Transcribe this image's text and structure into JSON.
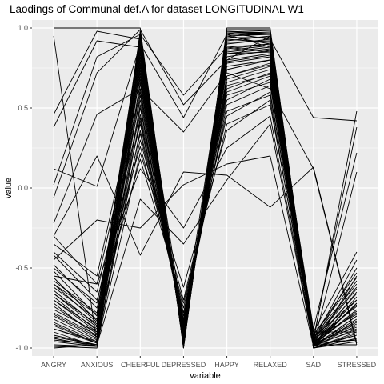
{
  "chart_data": {
    "type": "line",
    "subtype": "parallel-coordinates",
    "title": "Laodings of Communal def.A for dataset LONGITUDINAL W1",
    "xlabel": "variable",
    "ylabel": "value",
    "categories": [
      "ANGRY",
      "ANXIOUS",
      "CHEERFUL",
      "DEPRESSED",
      "HAPPY",
      "RELAXED",
      "SAD",
      "STRESSED"
    ],
    "x_tick_labels": [
      "ANGRY",
      "ANXIOUS",
      "CHEERFUL",
      "DEPRESSED",
      "HAPPY",
      "RELAXED",
      "SAD",
      "STRESSED"
    ],
    "ylim": [
      -1.05,
      1.05
    ],
    "y_ticks": [
      -1.0,
      -0.5,
      0.0,
      0.5,
      1.0
    ],
    "y_tick_labels": [
      "-1.0",
      "-0.5",
      "0.0",
      "0.5",
      "1.0"
    ],
    "grid": true,
    "background": "#ebebeb",
    "grid_color": "#ffffff",
    "line_color": "#000000",
    "series": [
      {
        "values": [
          1.0,
          1.0,
          1.0,
          -1.0,
          1.0,
          1.0,
          -1.0,
          -0.55
        ]
      },
      {
        "values": [
          0.95,
          -0.98,
          0.98,
          -0.97,
          0.98,
          0.96,
          -0.99,
          -0.72
        ]
      },
      {
        "values": [
          0.46,
          0.98,
          0.93,
          -0.93,
          0.97,
          0.93,
          0.44,
          0.42
        ]
      },
      {
        "values": [
          0.38,
          0.92,
          0.88,
          -0.85,
          0.95,
          0.9,
          -0.96,
          0.48
        ]
      },
      {
        "values": [
          0.02,
          0.82,
          0.96,
          0.58,
          0.88,
          0.85,
          -0.88,
          0.22
        ]
      },
      {
        "values": [
          -0.06,
          0.72,
          0.99,
          0.52,
          0.8,
          0.95,
          -0.94,
          0.38
        ]
      },
      {
        "values": [
          0.12,
          0.01,
          0.9,
          0.44,
          0.96,
          0.88,
          -0.9,
          -0.9
        ]
      },
      {
        "values": [
          -0.22,
          0.46,
          0.62,
          0.35,
          0.72,
          0.62,
          0.12,
          -0.98
        ]
      },
      {
        "values": [
          -0.3,
          0.2,
          -0.42,
          0.1,
          0.08,
          -0.12,
          0.13,
          -0.97
        ]
      },
      {
        "values": [
          -0.45,
          -0.2,
          -0.25,
          0.02,
          0.15,
          0.2,
          -0.99,
          -0.92
        ]
      },
      {
        "values": [
          -1.0,
          -0.98,
          -0.07,
          -0.35,
          0.05,
          0.4,
          -0.98,
          0.1
        ]
      },
      {
        "values": [
          -0.55,
          -0.6,
          0.12,
          -0.25,
          0.25,
          0.45,
          -0.97,
          -0.95
        ]
      },
      {
        "values": [
          -0.95,
          -0.98,
          0.22,
          -0.62,
          0.36,
          0.55,
          -0.99,
          -0.8
        ]
      },
      {
        "values": [
          -0.7,
          -0.9,
          0.3,
          -0.7,
          0.45,
          0.6,
          -0.96,
          -0.78
        ]
      },
      {
        "values": [
          -0.85,
          -0.97,
          0.36,
          -0.78,
          0.55,
          0.68,
          -0.98,
          -0.85
        ]
      },
      {
        "values": [
          -0.62,
          -0.82,
          0.42,
          -0.82,
          0.62,
          0.72,
          -0.95,
          -0.74
        ]
      },
      {
        "values": [
          -0.9,
          -0.99,
          0.5,
          -0.88,
          0.68,
          0.76,
          -0.99,
          -0.88
        ]
      },
      {
        "values": [
          -0.78,
          -0.92,
          0.58,
          -0.9,
          0.74,
          0.8,
          -0.97,
          -0.7
        ]
      },
      {
        "values": [
          -0.66,
          -0.87,
          0.65,
          -0.93,
          0.8,
          0.84,
          -0.98,
          -0.82
        ]
      },
      {
        "values": [
          -0.98,
          -0.99,
          0.72,
          -0.95,
          0.84,
          0.87,
          -1.0,
          -0.92
        ]
      },
      {
        "values": [
          -0.72,
          -0.93,
          0.78,
          -0.96,
          0.88,
          0.9,
          -0.98,
          -0.76
        ]
      },
      {
        "values": [
          -0.58,
          -0.78,
          0.84,
          -0.97,
          0.91,
          0.92,
          -0.96,
          -0.66
        ]
      },
      {
        "values": [
          -0.88,
          -0.96,
          0.88,
          -0.98,
          0.94,
          0.94,
          -0.99,
          -0.86
        ]
      },
      {
        "values": [
          -0.8,
          -0.94,
          0.92,
          -0.99,
          0.96,
          0.96,
          -0.99,
          -0.8
        ]
      },
      {
        "values": [
          -0.68,
          -0.89,
          0.95,
          -0.99,
          0.98,
          0.97,
          -0.98,
          -0.72
        ]
      },
      {
        "values": [
          -0.93,
          -0.98,
          0.97,
          -1.0,
          0.99,
          0.98,
          -1.0,
          -0.9
        ]
      },
      {
        "values": [
          -0.5,
          -0.72,
          0.55,
          -0.86,
          0.66,
          0.74,
          -0.93,
          -0.6
        ]
      },
      {
        "values": [
          -0.4,
          -0.65,
          0.46,
          -0.8,
          0.6,
          0.7,
          -0.92,
          -0.56
        ]
      },
      {
        "values": [
          -0.35,
          -0.55,
          0.68,
          -0.91,
          0.78,
          0.82,
          -0.94,
          -0.62
        ]
      },
      {
        "values": [
          -0.76,
          -0.9,
          0.8,
          -0.94,
          0.86,
          0.89,
          -0.97,
          -0.95
        ]
      },
      {
        "values": [
          -0.82,
          -0.95,
          0.62,
          -0.92,
          0.76,
          0.8,
          -0.98,
          -0.98
        ]
      },
      {
        "values": [
          -0.6,
          -0.84,
          0.74,
          -0.95,
          0.82,
          0.86,
          -0.96,
          -0.5
        ]
      },
      {
        "values": [
          -0.86,
          -0.97,
          0.86,
          -0.97,
          0.9,
          0.93,
          -0.99,
          -0.68
        ]
      },
      {
        "values": [
          -0.74,
          -0.91,
          0.9,
          -0.98,
          0.92,
          0.95,
          -0.97,
          -0.58
        ]
      },
      {
        "values": [
          -0.64,
          -0.86,
          0.94,
          -0.99,
          0.95,
          0.96,
          -0.98,
          -0.84
        ]
      },
      {
        "values": [
          -0.96,
          -0.99,
          0.98,
          -1.0,
          0.97,
          0.97,
          -1.0,
          -0.94
        ]
      },
      {
        "values": [
          -0.52,
          -0.8,
          0.7,
          -0.9,
          0.84,
          0.85,
          -0.95,
          -0.45
        ]
      },
      {
        "values": [
          -0.3,
          -0.6,
          0.6,
          -0.85,
          0.7,
          0.78,
          -0.9,
          -0.4
        ]
      },
      {
        "values": [
          -0.48,
          -0.75,
          0.4,
          -0.84,
          0.58,
          0.66,
          -0.93,
          -0.7
        ]
      },
      {
        "values": [
          -0.84,
          -0.96,
          0.66,
          -0.93,
          0.79,
          0.83,
          -0.98,
          -0.77
        ]
      },
      {
        "values": [
          -0.7,
          -0.88,
          0.82,
          -0.96,
          0.87,
          0.9,
          -0.97,
          -0.87
        ]
      },
      {
        "values": [
          -0.92,
          -0.98,
          0.76,
          -0.95,
          0.85,
          0.88,
          -0.99,
          -0.83
        ]
      },
      {
        "values": [
          -0.56,
          -0.83,
          0.96,
          -0.99,
          0.99,
          0.99,
          -0.98,
          -0.65
        ]
      },
      {
        "values": [
          -0.99,
          -1.0,
          0.85,
          -0.97,
          0.93,
          0.91,
          -1.0,
          -0.96
        ]
      },
      {
        "values": [
          -0.79,
          -0.93,
          0.52,
          -0.89,
          0.7,
          0.77,
          -0.97,
          -0.73
        ]
      },
      {
        "values": [
          -0.66,
          -0.85,
          0.34,
          -0.83,
          0.52,
          0.64,
          -0.95,
          -0.63
        ]
      },
      {
        "values": [
          -0.42,
          -0.7,
          0.26,
          -0.75,
          0.48,
          0.58,
          -0.92,
          -0.53
        ]
      },
      {
        "values": [
          -0.88,
          -0.97,
          0.44,
          -0.87,
          0.64,
          0.71,
          -0.98,
          -0.89
        ]
      },
      {
        "values": [
          -0.6,
          -0.79,
          0.18,
          -0.72,
          0.4,
          0.52,
          -0.94,
          -0.79
        ]
      },
      {
        "values": [
          -0.94,
          -0.99,
          0.93,
          -0.99,
          0.96,
          0.97,
          -1.0,
          -0.91
        ]
      }
    ]
  }
}
